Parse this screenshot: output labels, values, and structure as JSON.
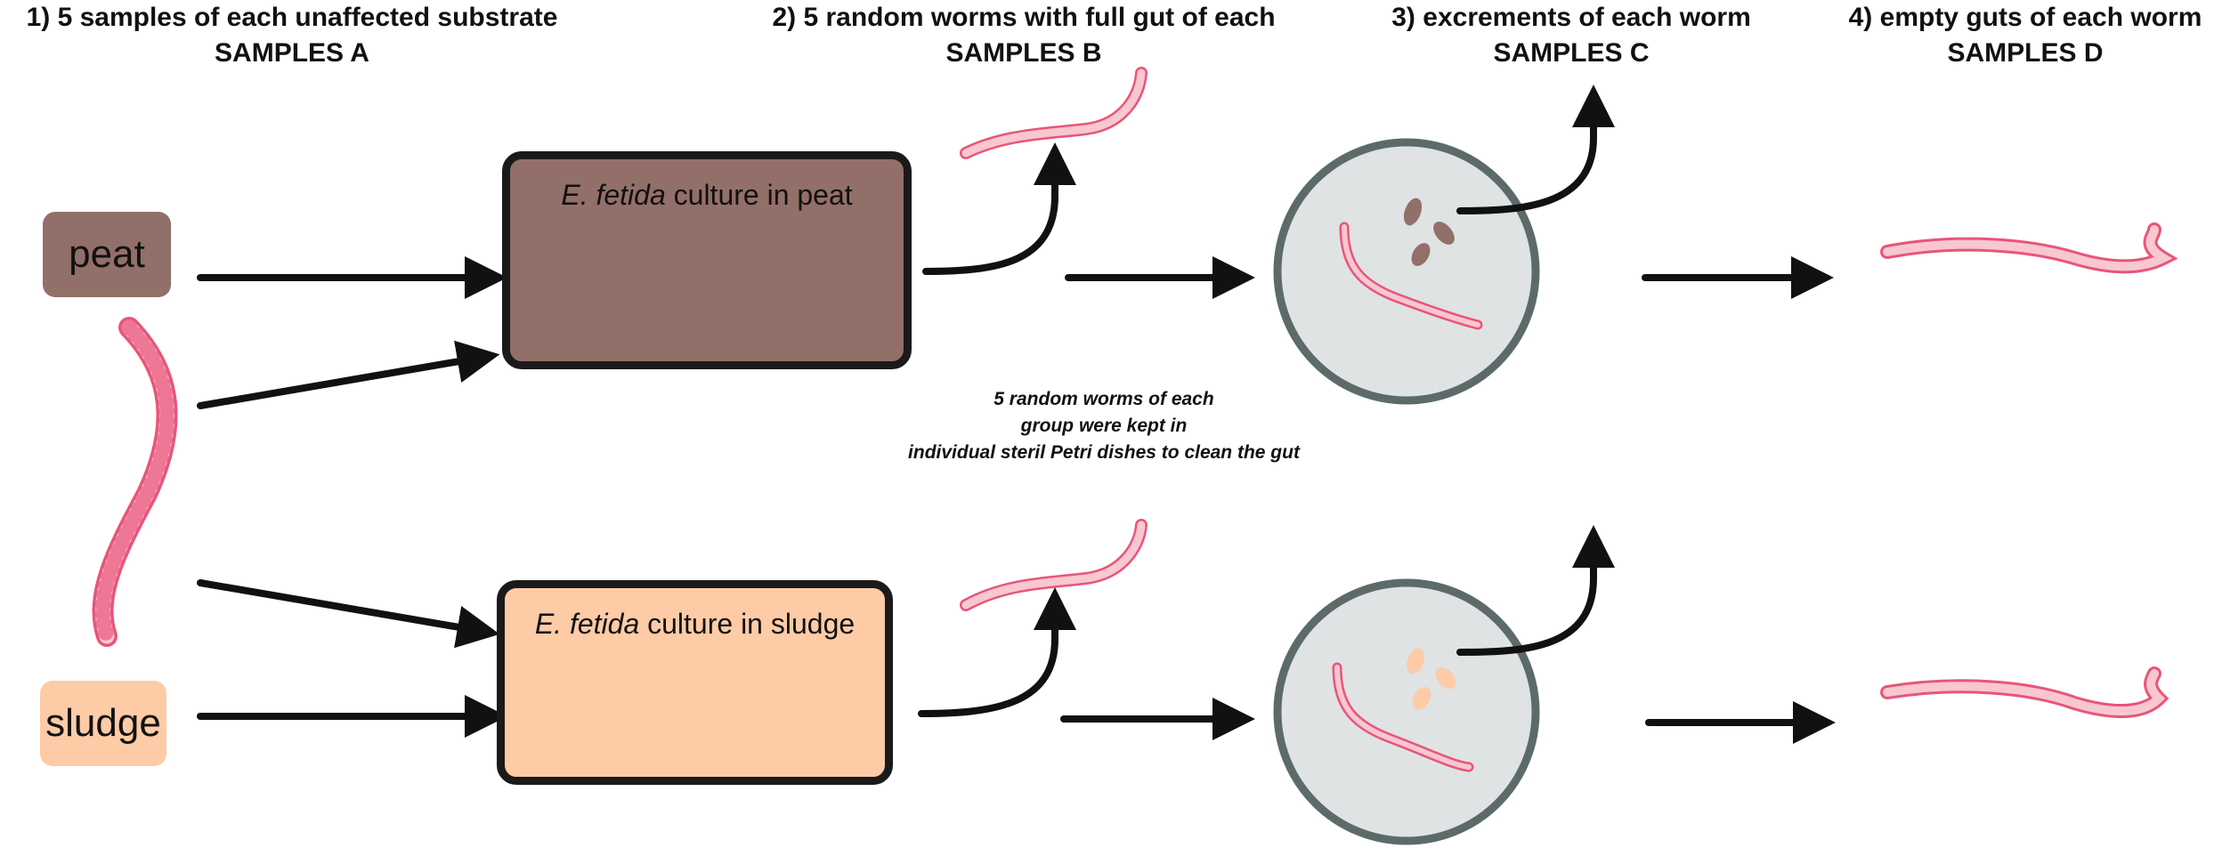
{
  "headers": [
    {
      "line1": "1) 5 samples of each unaffected substrate",
      "line2": "SAMPLES A"
    },
    {
      "line1": "2) 5 random worms with full gut of each",
      "line2": "SAMPLES B"
    },
    {
      "line1": "3) excrements of each worm",
      "line2": "SAMPLES C"
    },
    {
      "line1": "4) empty guts of each worm",
      "line2": "SAMPLES D"
    }
  ],
  "substrates": {
    "peat": {
      "label": "peat",
      "color": "#936f69"
    },
    "sludge": {
      "label": "sludge",
      "color": "#fecba7"
    }
  },
  "cultures": {
    "peat": {
      "species": "E. fetida",
      "suffix": " culture in peat",
      "color": "#936f69"
    },
    "sludge": {
      "species": "E. fetida",
      "suffix": " culture in sludge",
      "color": "#fecba7"
    }
  },
  "note": {
    "line1": "5 random worms of each",
    "line2": "group were kept in",
    "line3": "individual steril Petri dishes to clean the gut"
  },
  "colors": {
    "worm_fill": "#f8c7d0",
    "worm_stroke": "#e8557a",
    "dish_fill": "#dfe3e3",
    "dish_border": "#5c6b69",
    "excrement_peat": "#936f69",
    "excrement_sludge": "#fecba7",
    "arrow": "#111111"
  }
}
